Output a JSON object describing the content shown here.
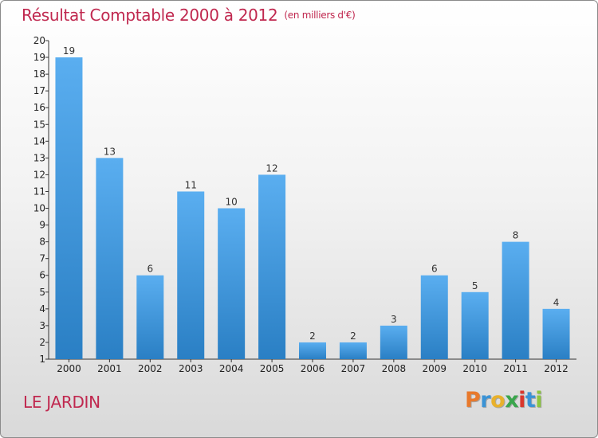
{
  "title": "Résultat Comptable 2000 à 2012",
  "subtitle": "(en milliers d'€)",
  "commune": "LE JARDIN",
  "logo": {
    "letters": [
      "P",
      "r",
      "o",
      "x",
      "i",
      "t",
      "i"
    ],
    "colors": [
      "#e8792c",
      "#3a93d6",
      "#e8b12c",
      "#3aa64c",
      "#d9372d",
      "#3a93d6",
      "#8cc63f"
    ]
  },
  "colors": {
    "bar_top": "#5aaef0",
    "bar_bottom": "#2a7fc4",
    "title": "#c0284f"
  },
  "chart_data": {
    "type": "bar",
    "categories": [
      "2000",
      "2001",
      "2002",
      "2003",
      "2004",
      "2005",
      "2006",
      "2007",
      "2008",
      "2009",
      "2010",
      "2011",
      "2012"
    ],
    "values": [
      19,
      13,
      6,
      11,
      10,
      12,
      2,
      2,
      3,
      6,
      5,
      8,
      4
    ],
    "y_ticks": [
      "1",
      "2",
      "3",
      "4",
      "5",
      "6",
      "7",
      "8",
      "9",
      "10",
      "11",
      "12",
      "13",
      "14",
      "15",
      "16",
      "17",
      "18",
      "19",
      "20"
    ],
    "ylim": [
      1,
      20
    ],
    "grid": false,
    "legend": "none"
  }
}
